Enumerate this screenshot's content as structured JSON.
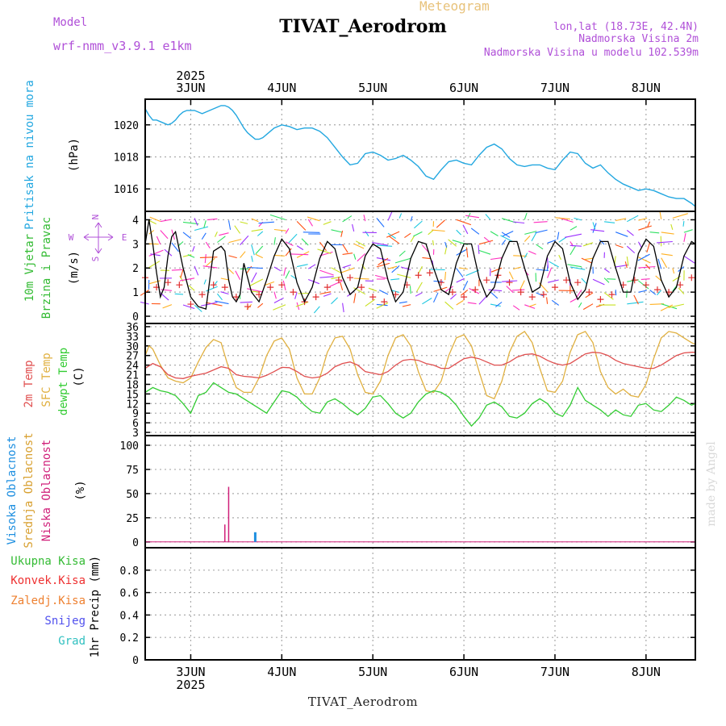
{
  "header": {
    "title": "TIVAT_Aerodrom",
    "subtitle": "Meteogram",
    "model_label": "Model",
    "model_value": "wrf-nmm_v3.9.1 e1km",
    "lonlat": "lon,lat (18.73E, 42.4N)",
    "visina": "Nadmorska Visina 2m",
    "visina_model": "Nadmorska Visina u modelu 102.539m",
    "bottom_station": "TIVAT_Aerodrom",
    "credit": "made by Angel"
  },
  "colors": {
    "pressure": "#22a7e0",
    "wind_speed": "#000000",
    "gust": "#e03030",
    "t2m": "#e05050",
    "sfc": "#e0b040",
    "dewpt": "#33cc33",
    "high_cloud": "#1e8fe0",
    "mid_cloud": "#d8a030",
    "low_cloud": "#d0207a",
    "total_precip": "#33bb33",
    "conv_precip": "#ee3030",
    "frozen_precip": "#ee8030",
    "snow": "#5050ee",
    "graupel": "#30c0c0",
    "wind_label": "#33bb33",
    "pressure_label": "#22a7e0",
    "compass": "#b050d8"
  },
  "chart_data": [
    {
      "type": "line",
      "panel": "pressure",
      "ylabel_title": "Pritisak na nivou mora",
      "ylabel_unit": "(hPa)",
      "x_axis": "hours from 2025-06-02 12:00 UTC",
      "xlim": [
        0,
        145
      ],
      "ylim": [
        1014.6,
        1021.6
      ],
      "yticks": [
        1016,
        1018,
        1020
      ],
      "series": [
        {
          "key": "pressure",
          "x": [
            0,
            1,
            2,
            3,
            4,
            5,
            6,
            7,
            8,
            9,
            10,
            11,
            12,
            13,
            14,
            15,
            16,
            17,
            18,
            19,
            20,
            21,
            22,
            23,
            24,
            25,
            26,
            27,
            28,
            29,
            30,
            31,
            32,
            33,
            34,
            36,
            38,
            40,
            42,
            44,
            46,
            48,
            50,
            52,
            54,
            56,
            58,
            60,
            62,
            64,
            66,
            68,
            70,
            72,
            74,
            76,
            78,
            80,
            82,
            84,
            86,
            88,
            90,
            92,
            94,
            96,
            98,
            100,
            102,
            104,
            106,
            108,
            110,
            112,
            114,
            116,
            118,
            120,
            122,
            124,
            126,
            128,
            130,
            132,
            134,
            136,
            138,
            140,
            142,
            144,
            145
          ],
          "y": [
            1021.0,
            1020.6,
            1020.3,
            1020.3,
            1020.2,
            1020.1,
            1020.0,
            1020.1,
            1020.3,
            1020.6,
            1020.8,
            1020.9,
            1020.9,
            1020.9,
            1020.8,
            1020.7,
            1020.8,
            1020.9,
            1021.0,
            1021.1,
            1021.2,
            1021.2,
            1021.1,
            1020.9,
            1020.6,
            1020.2,
            1019.8,
            1019.5,
            1019.3,
            1019.1,
            1019.1,
            1019.2,
            1019.4,
            1019.6,
            1019.8,
            1020.0,
            1019.9,
            1019.7,
            1019.8,
            1019.8,
            1019.6,
            1019.2,
            1018.6,
            1018.0,
            1017.5,
            1017.6,
            1018.2,
            1018.3,
            1018.1,
            1017.8,
            1017.9,
            1018.1,
            1017.8,
            1017.4,
            1016.8,
            1016.6,
            1017.2,
            1017.7,
            1017.8,
            1017.6,
            1017.5,
            1018.1,
            1018.6,
            1018.8,
            1018.5,
            1017.9,
            1017.5,
            1017.4,
            1017.5,
            1017.5,
            1017.3,
            1017.2,
            1017.8,
            1018.3,
            1018.2,
            1017.6,
            1017.3,
            1017.5,
            1017.0,
            1016.6,
            1016.3,
            1016.1,
            1015.9,
            1016.0,
            1015.9,
            1015.7,
            1015.5,
            1015.4,
            1015.4,
            1015.1,
            1014.9
          ]
        }
      ]
    },
    {
      "type": "line",
      "panel": "wind",
      "ylabel_title_1": "10m Vjetar",
      "ylabel_title_2": "Brzina i Pravac",
      "ylabel_unit": "(m/s)",
      "compass": {
        "n": "N",
        "s": "S",
        "e": "E",
        "w": "W"
      },
      "xlim": [
        0,
        145
      ],
      "ylim": [
        -0.3,
        4.35
      ],
      "yticks": [
        0,
        1,
        2,
        3,
        4
      ],
      "series": [
        {
          "key": "wind_speed",
          "x": [
            0,
            1,
            2,
            3,
            4,
            5,
            6,
            7,
            8,
            10,
            12,
            14,
            16,
            18,
            19,
            20,
            21,
            22,
            23,
            24,
            25,
            26,
            28,
            30,
            32,
            34,
            36,
            38,
            40,
            42,
            44,
            46,
            48,
            50,
            52,
            54,
            56,
            58,
            60,
            62,
            64,
            66,
            68,
            70,
            72,
            74,
            76,
            78,
            80,
            82,
            84,
            86,
            88,
            90,
            92,
            94,
            96,
            98,
            100,
            102,
            104,
            106,
            108,
            110,
            112,
            114,
            116,
            118,
            120,
            122,
            124,
            126,
            128,
            130,
            132,
            134,
            136,
            138,
            140,
            142,
            144,
            145
          ],
          "y": [
            3.0,
            4.0,
            3.0,
            1.8,
            0.8,
            1.2,
            2.5,
            3.3,
            3.5,
            2.0,
            0.8,
            0.4,
            0.3,
            2.7,
            2.8,
            2.9,
            2.7,
            1.5,
            0.8,
            0.6,
            0.9,
            2.2,
            1.0,
            0.6,
            1.5,
            2.5,
            3.2,
            2.8,
            1.4,
            0.6,
            1.2,
            2.4,
            3.1,
            2.8,
            1.6,
            0.9,
            1.2,
            2.5,
            3.0,
            2.8,
            1.5,
            0.6,
            1.0,
            2.4,
            3.1,
            3.0,
            2.0,
            1.1,
            0.9,
            2.2,
            3.0,
            3.0,
            1.6,
            0.8,
            1.2,
            2.4,
            3.1,
            3.1,
            2.0,
            1.0,
            1.2,
            2.5,
            3.1,
            2.8,
            1.4,
            0.7,
            1.1,
            2.4,
            3.1,
            3.1,
            2.0,
            1.0,
            1.0,
            2.6,
            3.2,
            2.9,
            1.5,
            0.8,
            1.2,
            2.5,
            3.1,
            3.0
          ]
        },
        {
          "key": "gust",
          "x": [
            0,
            3,
            6,
            9,
            12,
            15,
            18,
            21,
            24,
            27,
            30,
            33,
            36,
            39,
            42,
            45,
            48,
            51,
            54,
            57,
            60,
            63,
            66,
            69,
            72,
            75,
            78,
            81,
            84,
            87,
            90,
            93,
            96,
            99,
            102,
            105,
            108,
            111,
            114,
            117,
            120,
            123,
            126,
            129,
            132,
            135,
            138,
            141,
            144
          ],
          "y": [
            1.6,
            1.2,
            1.4,
            1.3,
            0.5,
            0.9,
            1.3,
            1.2,
            0.8,
            0.4,
            0.9,
            1.2,
            1.3,
            1.0,
            0.6,
            0.8,
            1.2,
            1.5,
            1.6,
            1.2,
            0.8,
            0.6,
            0.9,
            1.3,
            1.7,
            1.8,
            1.4,
            1.0,
            0.8,
            1.1,
            1.5,
            1.7,
            1.4,
            1.0,
            0.8,
            0.9,
            1.2,
            1.5,
            1.4,
            1.0,
            0.7,
            0.9,
            1.3,
            1.5,
            1.3,
            1.1,
            1.0,
            1.3,
            1.6
          ]
        }
      ]
    },
    {
      "type": "line",
      "panel": "temperature",
      "ylabel_t2m": "2m Temp",
      "ylabel_sfc": "SFC Temp",
      "ylabel_dewpt": "dewpt Temp",
      "ylabel_unit": "(C)",
      "xlim": [
        0,
        145
      ],
      "ylim": [
        2,
        37
      ],
      "yticks": [
        3,
        6,
        9,
        12,
        15,
        18,
        21,
        24,
        27,
        30,
        33,
        36
      ],
      "series": [
        {
          "key": "t2m",
          "x": [
            0,
            2,
            4,
            6,
            8,
            10,
            12,
            14,
            16,
            18,
            20,
            22,
            24,
            26,
            28,
            30,
            32,
            34,
            36,
            38,
            40,
            42,
            44,
            46,
            48,
            50,
            52,
            54,
            56,
            58,
            60,
            62,
            64,
            66,
            68,
            70,
            72,
            74,
            76,
            78,
            80,
            82,
            84,
            86,
            88,
            90,
            92,
            94,
            96,
            98,
            100,
            102,
            104,
            106,
            108,
            110,
            112,
            114,
            116,
            118,
            120,
            122,
            124,
            126,
            128,
            130,
            132,
            134,
            136,
            138,
            140,
            142,
            144,
            145
          ],
          "y": [
            23.0,
            24.5,
            23.5,
            21.0,
            20.0,
            19.8,
            20.5,
            21.0,
            21.5,
            22.5,
            23.5,
            23.0,
            21.0,
            20.5,
            20.3,
            20.0,
            20.8,
            22.0,
            23.3,
            23.2,
            22.0,
            20.5,
            20.0,
            20.3,
            21.5,
            23.5,
            24.5,
            25.0,
            24.0,
            22.0,
            21.5,
            21.0,
            22.0,
            24.0,
            25.5,
            25.8,
            25.5,
            24.5,
            24.0,
            23.0,
            23.0,
            24.5,
            26.0,
            26.5,
            26.0,
            25.0,
            24.0,
            24.0,
            25.0,
            26.5,
            27.3,
            27.5,
            26.8,
            25.5,
            24.5,
            24.0,
            24.5,
            26.0,
            27.5,
            28.0,
            27.8,
            27.0,
            25.5,
            24.5,
            24.0,
            23.5,
            23.0,
            23.0,
            24.0,
            25.5,
            27.0,
            27.8,
            28.0,
            28.0
          ]
        },
        {
          "key": "sfc",
          "x": [
            0,
            1,
            2,
            4,
            6,
            8,
            10,
            12,
            14,
            16,
            18,
            20,
            22,
            24,
            26,
            28,
            30,
            32,
            34,
            36,
            38,
            40,
            42,
            44,
            46,
            48,
            50,
            52,
            54,
            56,
            58,
            60,
            62,
            64,
            66,
            68,
            70,
            72,
            74,
            76,
            78,
            80,
            82,
            84,
            86,
            88,
            90,
            92,
            94,
            96,
            98,
            100,
            102,
            104,
            106,
            108,
            110,
            112,
            114,
            116,
            118,
            120,
            122,
            124,
            126,
            128,
            130,
            132,
            134,
            136,
            138,
            140,
            142,
            144,
            145
          ],
          "y": [
            27.0,
            30.0,
            29.0,
            24.0,
            20.0,
            19.0,
            18.5,
            20.0,
            25.0,
            29.5,
            32.0,
            31.0,
            23.0,
            17.0,
            15.5,
            15.5,
            20.0,
            27.0,
            31.5,
            32.5,
            29.0,
            20.0,
            15.0,
            15.0,
            20.0,
            28.0,
            32.5,
            33.0,
            29.0,
            21.0,
            15.5,
            15.0,
            19.0,
            27.0,
            32.5,
            33.5,
            30.0,
            22.0,
            16.0,
            15.5,
            19.0,
            27.0,
            32.5,
            33.5,
            30.0,
            22.0,
            14.5,
            13.5,
            19.0,
            28.0,
            33.0,
            34.5,
            31.0,
            23.0,
            16.0,
            15.5,
            19.0,
            28.0,
            33.5,
            34.5,
            31.0,
            22.0,
            17.0,
            15.0,
            16.5,
            14.5,
            14.0,
            18.0,
            26.0,
            32.5,
            34.5,
            34.0,
            32.5,
            31.0,
            30.5
          ]
        },
        {
          "key": "dewpt",
          "x": [
            0,
            2,
            4,
            6,
            8,
            10,
            12,
            14,
            16,
            18,
            20,
            22,
            24,
            26,
            28,
            30,
            32,
            34,
            36,
            38,
            40,
            42,
            44,
            46,
            48,
            50,
            52,
            54,
            56,
            58,
            60,
            62,
            64,
            66,
            68,
            70,
            72,
            74,
            76,
            78,
            80,
            82,
            84,
            86,
            88,
            90,
            92,
            94,
            96,
            98,
            100,
            102,
            104,
            106,
            108,
            110,
            112,
            114,
            116,
            118,
            120,
            122,
            124,
            126,
            128,
            130,
            132,
            134,
            136,
            138,
            140,
            142,
            144,
            145
          ],
          "y": [
            15.5,
            17.0,
            16.0,
            15.5,
            14.5,
            12.0,
            9.0,
            14.5,
            15.5,
            18.5,
            17.0,
            15.5,
            15.0,
            13.5,
            12.0,
            10.5,
            9.0,
            12.5,
            16.0,
            15.5,
            14.0,
            11.5,
            9.5,
            9.0,
            12.5,
            13.5,
            12.0,
            10.0,
            8.5,
            10.5,
            14.0,
            14.5,
            12.0,
            9.0,
            7.5,
            9.0,
            12.5,
            15.0,
            16.0,
            15.5,
            14.0,
            11.5,
            8.0,
            5.0,
            7.5,
            11.5,
            12.5,
            11.0,
            8.0,
            7.5,
            9.0,
            12.0,
            13.5,
            12.0,
            9.0,
            8.0,
            11.5,
            17.0,
            13.0,
            11.5,
            10.0,
            8.0,
            10.0,
            8.5,
            8.0,
            11.5,
            12.0,
            10.0,
            9.5,
            11.5,
            14.0,
            13.0,
            11.5,
            12.0
          ]
        }
      ]
    },
    {
      "type": "bar",
      "panel": "cloud",
      "ylabel_visoka": "Visoka Oblacnost",
      "ylabel_srednja": "Srednja Oblacnost",
      "ylabel_niska": "Niska Oblacnost",
      "ylabel_unit": "(%)",
      "xlim": [
        0,
        145
      ],
      "ylim": [
        -6,
        110
      ],
      "yticks": [
        0,
        25,
        50,
        75,
        100
      ],
      "series": [
        {
          "key": "low_cloud",
          "x": [
            21,
            22
          ],
          "values": [
            18,
            57
          ]
        },
        {
          "key": "high_cloud",
          "x": [
            29
          ],
          "values": [
            10
          ]
        }
      ]
    },
    {
      "type": "bar",
      "panel": "precip",
      "legend_total": "Ukupna Kisa",
      "legend_conv": "Konvek.Kisa",
      "legend_frozen": "Zaledj.Kisa",
      "legend_snow": "Snijeg",
      "legend_grad": "Grad",
      "ylabel_unit": "1hr Precip (mm)",
      "xlim": [
        0,
        145
      ],
      "ylim": [
        0,
        1.0
      ],
      "yticks": [
        0,
        0.2,
        0.4,
        0.6,
        0.8
      ],
      "series": []
    }
  ],
  "time_axis": {
    "year": "2025",
    "day_ticks": [
      {
        "label": "3JUN",
        "hour": 12
      },
      {
        "label": "4JUN",
        "hour": 36
      },
      {
        "label": "5JUN",
        "hour": 60
      },
      {
        "label": "6JUN",
        "hour": 84
      },
      {
        "label": "7JUN",
        "hour": 108
      },
      {
        "label": "8JUN",
        "hour": 132
      }
    ]
  }
}
